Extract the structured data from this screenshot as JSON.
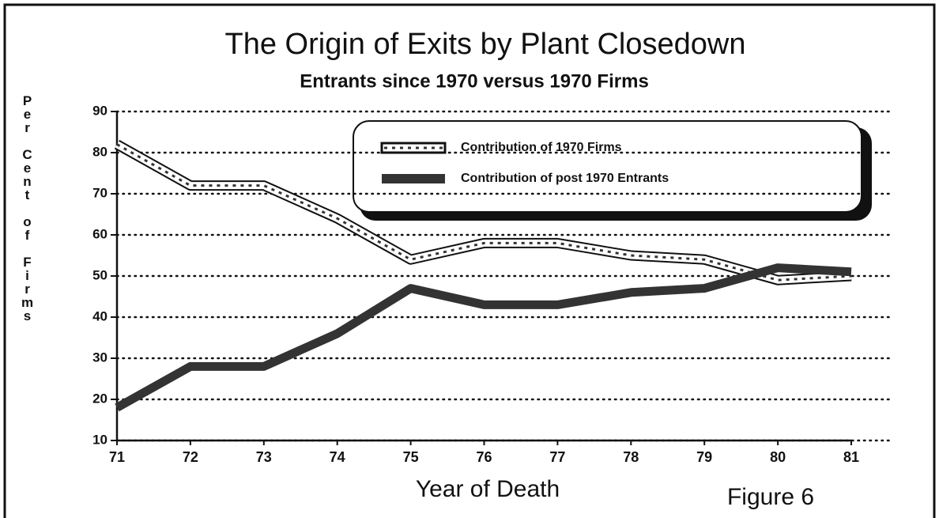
{
  "chart_data": {
    "type": "line",
    "title": "The Origin of Exits by Plant Closedown",
    "subtitle": "Entrants since 1970 versus 1970 Firms",
    "xlabel": "Year of Death",
    "ylabel": "Per Cent of Firms",
    "annotation": "Figure 6",
    "categories": [
      "71",
      "72",
      "73",
      "74",
      "75",
      "76",
      "77",
      "78",
      "79",
      "80",
      "81"
    ],
    "series": [
      {
        "name": "Contribution of 1970 Firms",
        "color": "#ffffff",
        "values": [
          82,
          72,
          72,
          64,
          54,
          58,
          58,
          55,
          54,
          49,
          50
        ]
      },
      {
        "name": "Contribution of post 1970 Entrants",
        "color": "#333333",
        "values": [
          18,
          28,
          28,
          36,
          47,
          43,
          43,
          46,
          47,
          52,
          51
        ]
      }
    ],
    "ylim": [
      10,
      90
    ],
    "yticks": [
      10,
      20,
      30,
      40,
      50,
      60,
      70,
      80,
      90
    ],
    "grid": true,
    "legend": "upper right"
  }
}
